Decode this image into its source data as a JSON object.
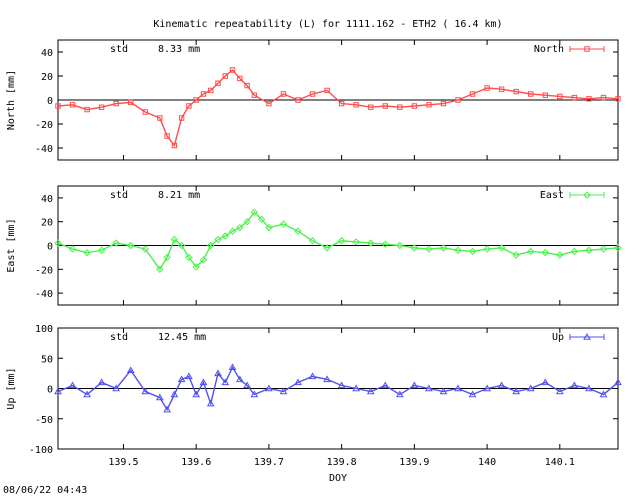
{
  "title": "Kinematic repeatability (L) for 1111.162 - ETH2  ( 16.4 km)",
  "footer": "08/06/22 04:43",
  "xlabel": "DOY",
  "x_tick_labels": [
    "139.5",
    "139.6",
    "139.7",
    "139.8",
    "139.9",
    "140",
    "140.1"
  ],
  "chart_data": [
    {
      "type": "scatter",
      "name": "north",
      "ylabel": "North [mm]",
      "legend": "North",
      "legend_position": "top-right",
      "std_label": "std",
      "std_value": "8.33 mm",
      "color": "#ff4c4c",
      "marker": "square",
      "ylim": [
        -50,
        50
      ],
      "yticks": [
        -40,
        -20,
        0,
        20,
        40
      ],
      "xlim": [
        139.41,
        140.18
      ],
      "series": [
        {
          "name": "North",
          "x": [
            139.41,
            139.43,
            139.45,
            139.47,
            139.49,
            139.51,
            139.53,
            139.55,
            139.56,
            139.57,
            139.58,
            139.59,
            139.6,
            139.61,
            139.62,
            139.63,
            139.64,
            139.65,
            139.66,
            139.67,
            139.68,
            139.7,
            139.72,
            139.74,
            139.76,
            139.78,
            139.8,
            139.82,
            139.84,
            139.86,
            139.88,
            139.9,
            139.92,
            139.94,
            139.96,
            139.98,
            140.0,
            140.02,
            140.04,
            140.06,
            140.08,
            140.1,
            140.12,
            140.14,
            140.16,
            140.18
          ],
          "y": [
            -5,
            -4,
            -8,
            -6,
            -3,
            -2,
            -10,
            -15,
            -30,
            -38,
            -15,
            -5,
            0,
            5,
            8,
            14,
            20,
            25,
            18,
            12,
            4,
            -3,
            5,
            0,
            5,
            8,
            -3,
            -4,
            -6,
            -5,
            -6,
            -5,
            -4,
            -3,
            0,
            5,
            10,
            9,
            7,
            5,
            4,
            3,
            2,
            1,
            2,
            1
          ]
        }
      ]
    },
    {
      "type": "scatter",
      "name": "east",
      "ylabel": "East [mm]",
      "legend": "East",
      "legend_position": "top-right",
      "std_label": "std",
      "std_value": "8.21 mm",
      "color": "#4cf04c",
      "marker": "diamond",
      "ylim": [
        -50,
        50
      ],
      "yticks": [
        -40,
        -20,
        0,
        20,
        40
      ],
      "xlim": [
        139.41,
        140.18
      ],
      "series": [
        {
          "name": "East",
          "x": [
            139.41,
            139.43,
            139.45,
            139.47,
            139.49,
            139.51,
            139.53,
            139.55,
            139.56,
            139.57,
            139.58,
            139.59,
            139.6,
            139.61,
            139.62,
            139.63,
            139.64,
            139.65,
            139.66,
            139.67,
            139.68,
            139.69,
            139.7,
            139.72,
            139.74,
            139.76,
            139.78,
            139.8,
            139.82,
            139.84,
            139.86,
            139.88,
            139.9,
            139.92,
            139.94,
            139.96,
            139.98,
            140.0,
            140.02,
            140.04,
            140.06,
            140.08,
            140.1,
            140.12,
            140.14,
            140.16,
            140.18
          ],
          "y": [
            2,
            -3,
            -6,
            -4,
            2,
            0,
            -3,
            -20,
            -10,
            5,
            0,
            -10,
            -18,
            -12,
            0,
            5,
            8,
            12,
            15,
            20,
            28,
            22,
            15,
            18,
            12,
            4,
            -2,
            4,
            3,
            2,
            1,
            0,
            -2,
            -3,
            -2,
            -4,
            -5,
            -3,
            -2,
            -8,
            -5,
            -6,
            -8,
            -5,
            -4,
            -3,
            -2
          ]
        }
      ]
    },
    {
      "type": "scatter",
      "name": "up",
      "ylabel": "Up [mm]",
      "legend": "Up",
      "legend_position": "top-right",
      "std_label": "std",
      "std_value": "12.45 mm",
      "color": "#5050f0",
      "marker": "triangle",
      "ylim": [
        -100,
        100
      ],
      "yticks": [
        -100,
        -50,
        0,
        50,
        100
      ],
      "xlim": [
        139.41,
        140.18
      ],
      "series": [
        {
          "name": "Up",
          "x": [
            139.41,
            139.43,
            139.45,
            139.47,
            139.49,
            139.51,
            139.53,
            139.55,
            139.56,
            139.57,
            139.58,
            139.59,
            139.6,
            139.61,
            139.62,
            139.63,
            139.64,
            139.65,
            139.66,
            139.67,
            139.68,
            139.7,
            139.72,
            139.74,
            139.76,
            139.78,
            139.8,
            139.82,
            139.84,
            139.86,
            139.88,
            139.9,
            139.92,
            139.94,
            139.96,
            139.98,
            140.0,
            140.02,
            140.04,
            140.06,
            140.08,
            140.1,
            140.12,
            140.14,
            140.16,
            140.18
          ],
          "y": [
            -5,
            5,
            -10,
            10,
            0,
            30,
            -5,
            -15,
            -35,
            -10,
            15,
            20,
            -10,
            10,
            -25,
            25,
            10,
            35,
            15,
            5,
            -10,
            0,
            -5,
            10,
            20,
            15,
            5,
            0,
            -5,
            5,
            -10,
            5,
            0,
            -5,
            0,
            -10,
            0,
            5,
            -5,
            0,
            10,
            -5,
            5,
            0,
            -10,
            10
          ]
        }
      ]
    }
  ]
}
